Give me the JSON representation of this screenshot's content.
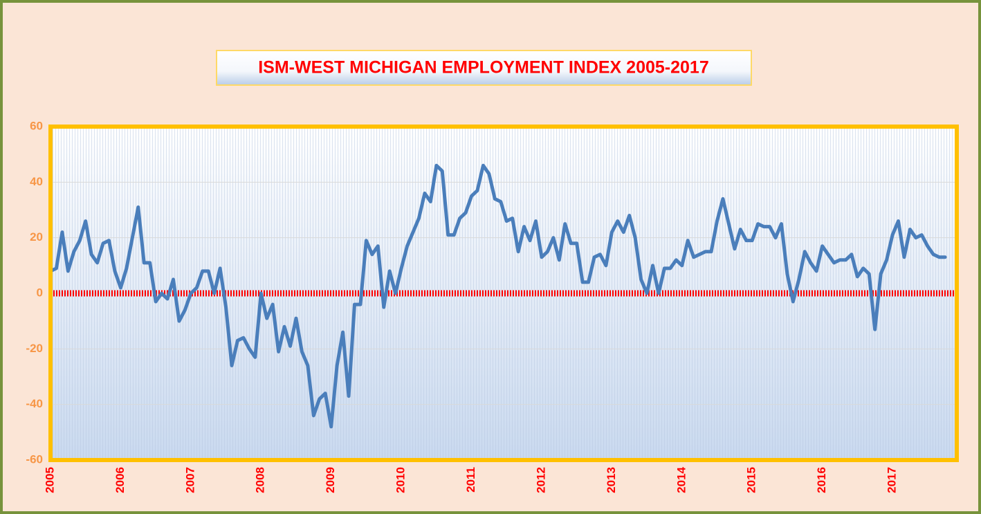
{
  "chart_data": {
    "type": "line",
    "title": "ISM-WEST MICHIGAN EMPLOYMENT INDEX 2005-2017",
    "categories": [
      "2005",
      null,
      null,
      null,
      null,
      null,
      null,
      null,
      null,
      null,
      null,
      null,
      "2006",
      null,
      null,
      null,
      null,
      null,
      null,
      null,
      null,
      null,
      null,
      null,
      "2007",
      null,
      null,
      null,
      null,
      null,
      null,
      null,
      null,
      null,
      null,
      null,
      "2008",
      null,
      null,
      null,
      null,
      null,
      null,
      null,
      null,
      null,
      null,
      null,
      "2009",
      null,
      null,
      null,
      null,
      null,
      null,
      null,
      null,
      null,
      null,
      null,
      "2010",
      null,
      null,
      null,
      null,
      null,
      null,
      null,
      null,
      null,
      null,
      null,
      "2011",
      null,
      null,
      null,
      null,
      null,
      null,
      null,
      null,
      null,
      null,
      null,
      "2012",
      null,
      null,
      null,
      null,
      null,
      null,
      null,
      null,
      null,
      null,
      null,
      "2013",
      null,
      null,
      null,
      null,
      null,
      null,
      null,
      null,
      null,
      null,
      null,
      "2014",
      null,
      null,
      null,
      null,
      null,
      null,
      null,
      null,
      null,
      null,
      null,
      "2015",
      null,
      null,
      null,
      null,
      null,
      null,
      null,
      null,
      null,
      null,
      null,
      "2016",
      null,
      null,
      null,
      null,
      null,
      null,
      null,
      null,
      null,
      null,
      null,
      "2017",
      null,
      null,
      null,
      null,
      null,
      null,
      null,
      null,
      null,
      null,
      null
    ],
    "series": [
      {
        "color": "#4a7ebb",
        "values": [
          8,
          9,
          22,
          8,
          15,
          19,
          26,
          14,
          11,
          18,
          19,
          8,
          2,
          9,
          20,
          31,
          11,
          11,
          -3,
          0,
          -2,
          5,
          -10,
          -6,
          0,
          2,
          8,
          8,
          0,
          9,
          -5,
          -26,
          -17,
          -16,
          -20,
          -23,
          0,
          -9,
          -4,
          -21,
          -12,
          -19,
          -9,
          -21,
          -26,
          -44,
          -38,
          -36,
          -48,
          -26,
          -14,
          -37,
          -4,
          -4,
          19,
          14,
          17,
          -5,
          8,
          0,
          9,
          17,
          22,
          27,
          36,
          33,
          46,
          44,
          21,
          21,
          27,
          29,
          35,
          37,
          46,
          43,
          34,
          33,
          26,
          27,
          15,
          24,
          19,
          26,
          13,
          15,
          20,
          12,
          25,
          18,
          18,
          4,
          4,
          13,
          14,
          10,
          22,
          26,
          22,
          28,
          20,
          5,
          0,
          10,
          0,
          9,
          9,
          12,
          10,
          19,
          13,
          14,
          15,
          15,
          26,
          34,
          25,
          16,
          23,
          19,
          19,
          25,
          24,
          24,
          20,
          25,
          7,
          -3,
          5,
          15,
          11,
          8,
          17,
          14,
          11,
          12,
          12,
          14,
          6,
          9,
          7,
          -13,
          7,
          12,
          21,
          26,
          13,
          23,
          20,
          21,
          17,
          14,
          13,
          13,
          null,
          null
        ]
      }
    ],
    "ylim": [
      -60,
      60
    ],
    "yticks": [
      -60,
      -40,
      -20,
      0,
      20,
      40,
      60
    ],
    "grid": true,
    "reference_line": {
      "value": 0,
      "color": "#ff0000"
    }
  }
}
